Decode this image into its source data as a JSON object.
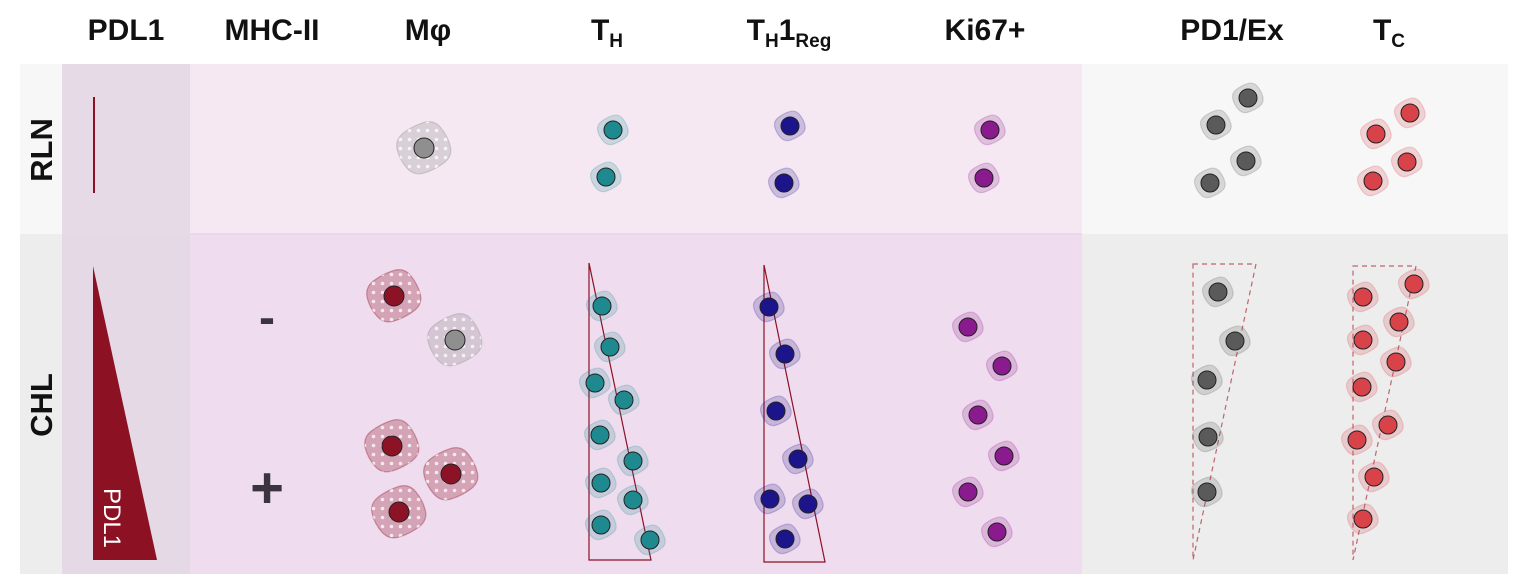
{
  "columns": {
    "pdl1": "PDL1",
    "mhc": "MHC-II",
    "macrophage": "Mφ",
    "th_base": "T",
    "th_sub": "H",
    "th1reg_base": "T",
    "th1reg_sub1": "H",
    "th1reg_mid": "1",
    "th1reg_sub2": "Reg",
    "ki67": "Ki67+",
    "pd1ex": "PD1/Ex",
    "tc_base": "T",
    "tc_sub": "C"
  },
  "rows": {
    "rln": "RLN",
    "chl": "CHL"
  },
  "mhc_signs": {
    "minus": "-",
    "plus": "+"
  },
  "pdl1_wedge_label": "PDL1",
  "colors": {
    "pdl1_red": "#8b1123",
    "th_teal": "#1e8a90",
    "treg_navy": "#1c148a",
    "ki67_purple": "#8a1b8e",
    "ex_gray": "#5a5a5a",
    "tc_red": "#d8434a",
    "mac_gray": "#8f8f8f",
    "mac_red": "#8c1325"
  }
}
